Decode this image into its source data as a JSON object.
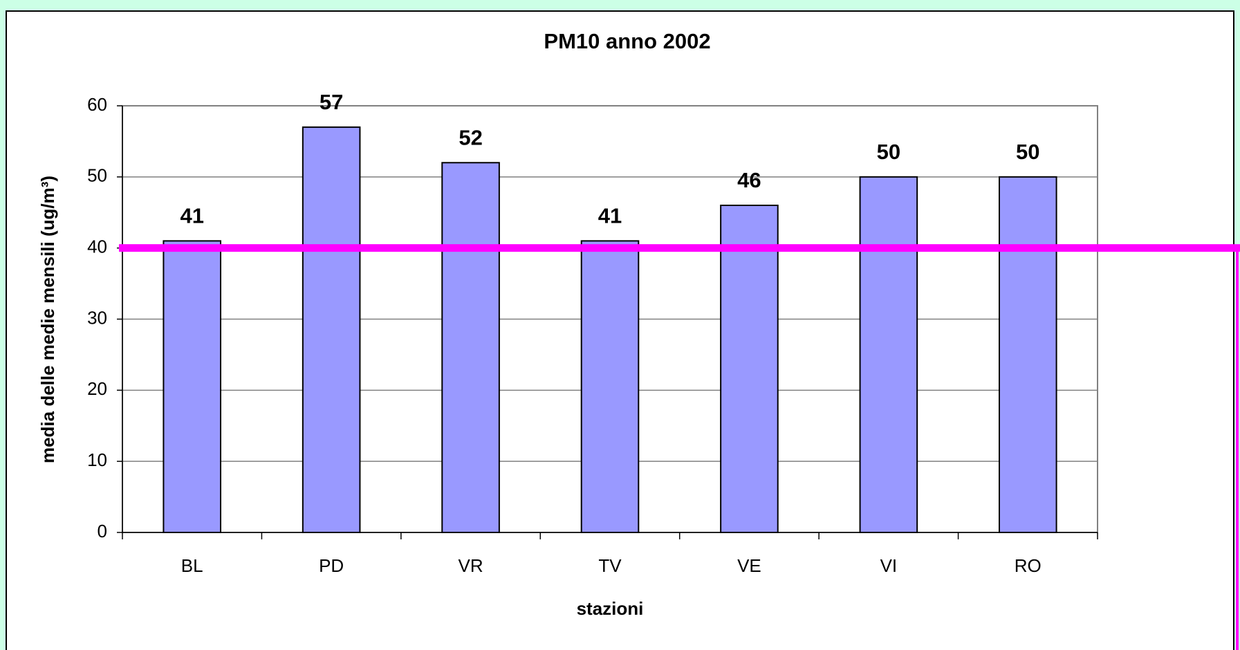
{
  "chart_data": {
    "type": "bar",
    "title": "PM10 anno 2002",
    "x_label": "stazioni",
    "y_label": "media delle medie mensili (ug/m³)",
    "categories": [
      "BL",
      "PD",
      "VR",
      "TV",
      "VE",
      "VI",
      "RO"
    ],
    "values": [
      41,
      57,
      52,
      41,
      46,
      50,
      50
    ],
    "color": "#9999ff",
    "ylim": [
      0,
      60
    ],
    "yticks": [
      0,
      10,
      20,
      30,
      40,
      50,
      60
    ],
    "grid": true,
    "threshold": 40,
    "threshold_color": "#ff00ff"
  }
}
